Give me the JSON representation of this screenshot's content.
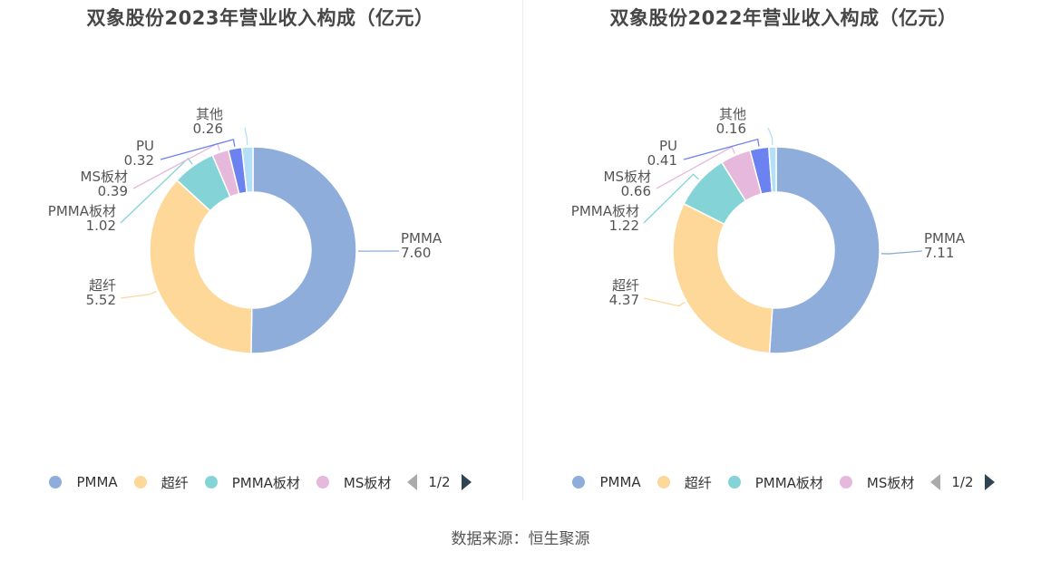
{
  "panels": [
    {
      "title": "双象股份2023年营业收入构成（亿元）"
    },
    {
      "title": "双象股份2022年营业收入构成（亿元）"
    }
  ],
  "legend": {
    "items": [
      {
        "label": "PMMA",
        "color": "#8fadda"
      },
      {
        "label": "超纤",
        "color": "#fdd899"
      },
      {
        "label": "PMMA板材",
        "color": "#84d4d7"
      },
      {
        "label": "MS板材",
        "color": "#e6b8dc"
      }
    ],
    "page": "1/2"
  },
  "source": "数据来源：恒生聚源",
  "chart_data": [
    {
      "type": "donut",
      "title": "双象股份2023年营业收入构成（亿元）",
      "slices": [
        {
          "name": "PMMA",
          "value": 7.6,
          "label": "7.60",
          "color": "#8fadda"
        },
        {
          "name": "超纤",
          "value": 5.52,
          "label": "5.52",
          "color": "#fdd899"
        },
        {
          "name": "PMMA板材",
          "value": 1.02,
          "label": "1.02",
          "color": "#84d4d7"
        },
        {
          "name": "MS板材",
          "value": 0.39,
          "label": "0.39",
          "color": "#e6b8dc"
        },
        {
          "name": "PU",
          "value": 0.32,
          "label": "0.32",
          "color": "#6c82f0"
        },
        {
          "name": "其他",
          "value": 0.26,
          "label": "0.26",
          "color": "#b3e0f8"
        }
      ]
    },
    {
      "type": "donut",
      "title": "双象股份2022年营业收入构成（亿元）",
      "slices": [
        {
          "name": "PMMA",
          "value": 7.11,
          "label": "7.11",
          "color": "#8fadda"
        },
        {
          "name": "超纤",
          "value": 4.37,
          "label": "4.37",
          "color": "#fdd899"
        },
        {
          "name": "PMMA板材",
          "value": 1.22,
          "label": "1.22",
          "color": "#84d4d7"
        },
        {
          "name": "MS板材",
          "value": 0.66,
          "label": "0.66",
          "color": "#e6b8dc"
        },
        {
          "name": "PU",
          "value": 0.41,
          "label": "0.41",
          "color": "#6c82f0"
        },
        {
          "name": "其他",
          "value": 0.16,
          "label": "0.16",
          "color": "#b3e0f8"
        }
      ]
    }
  ]
}
